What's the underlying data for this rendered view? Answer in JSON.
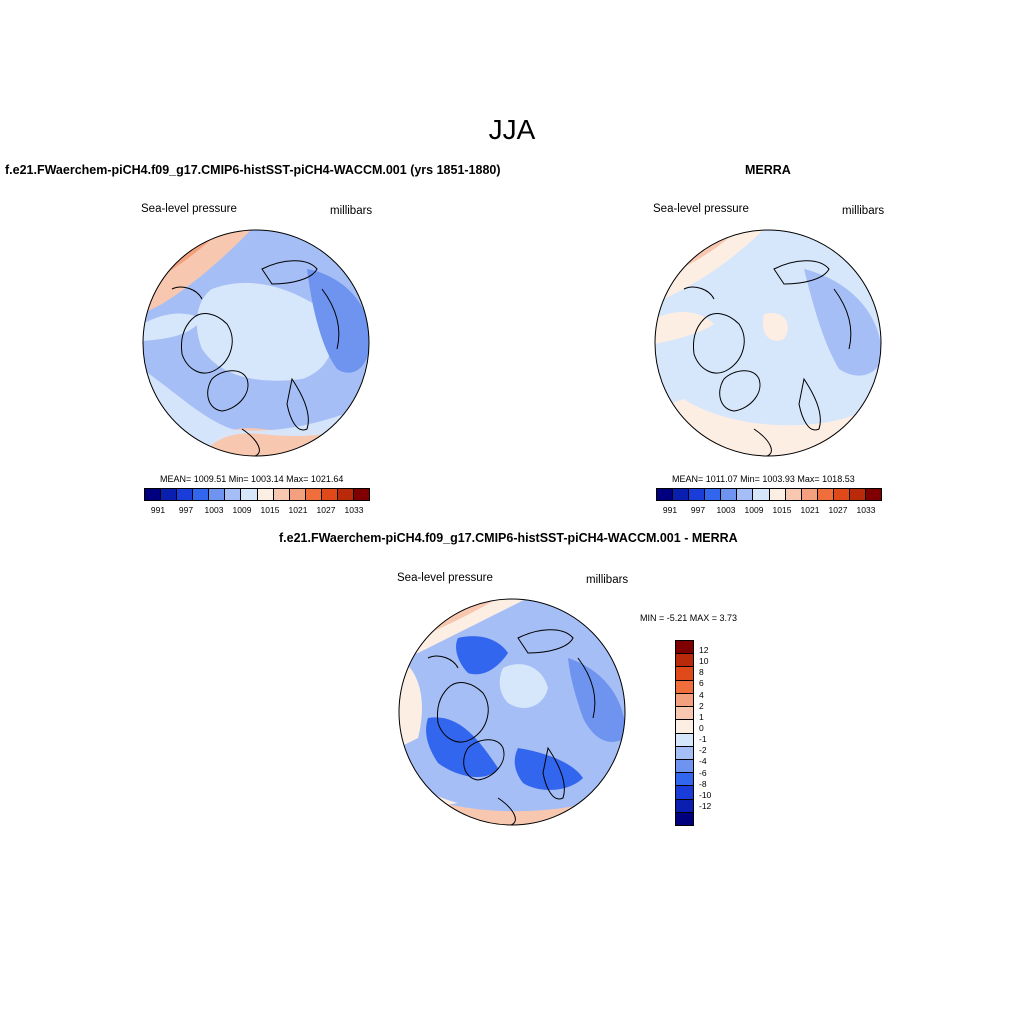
{
  "title": "JJA",
  "panels": {
    "model": {
      "title": "f.e21.FWaerchem-piCH4.f09_g17.CMIP6-histSST-piCH4-WACCM.001 (yrs 1851-1880)",
      "left_label": "Sea-level pressure",
      "right_label": "millibars",
      "stats": "MEAN= 1009.51  Min= 1003.14  Max= 1021.64"
    },
    "obs": {
      "title": "MERRA",
      "left_label": "Sea-level pressure",
      "right_label": "millibars",
      "stats": "MEAN= 1011.07  Min= 1003.93  Max= 1018.53"
    },
    "diff": {
      "title": "f.e21.FWaerchem-piCH4.f09_g17.CMIP6-histSST-piCH4-WACCM.001 - MERRA",
      "left_label": "Sea-level pressure",
      "right_label": "millibars",
      "stats": "MIN =  -5.21 MAX =   3.73"
    }
  },
  "colorbar_abs": {
    "colors": [
      "#00007f",
      "#0a1faf",
      "#1a3cd9",
      "#3366ee",
      "#6e94f0",
      "#a5bef5",
      "#d6e6fb",
      "#fdeee4",
      "#f8c7b0",
      "#f3a07f",
      "#ef6e3c",
      "#e04a1a",
      "#b82a0a",
      "#7f0000"
    ],
    "ticks": [
      "991",
      "997",
      "1003",
      "1009",
      "1015",
      "1021",
      "1027",
      "1033"
    ]
  },
  "colorbar_diff": {
    "colors": [
      "#7f0000",
      "#b82a0a",
      "#e04a1a",
      "#ef6e3c",
      "#f3a07f",
      "#f8c7b0",
      "#fdeee4",
      "#d6e6fb",
      "#a5bef5",
      "#6e94f0",
      "#3366ee",
      "#1a3cd9",
      "#0a1faf",
      "#00007f"
    ],
    "ticks": [
      "12",
      "10",
      "8",
      "6",
      "4",
      "2",
      "1",
      "0",
      "-1",
      "-2",
      "-4",
      "-6",
      "-8",
      "-10",
      "-12"
    ]
  }
}
